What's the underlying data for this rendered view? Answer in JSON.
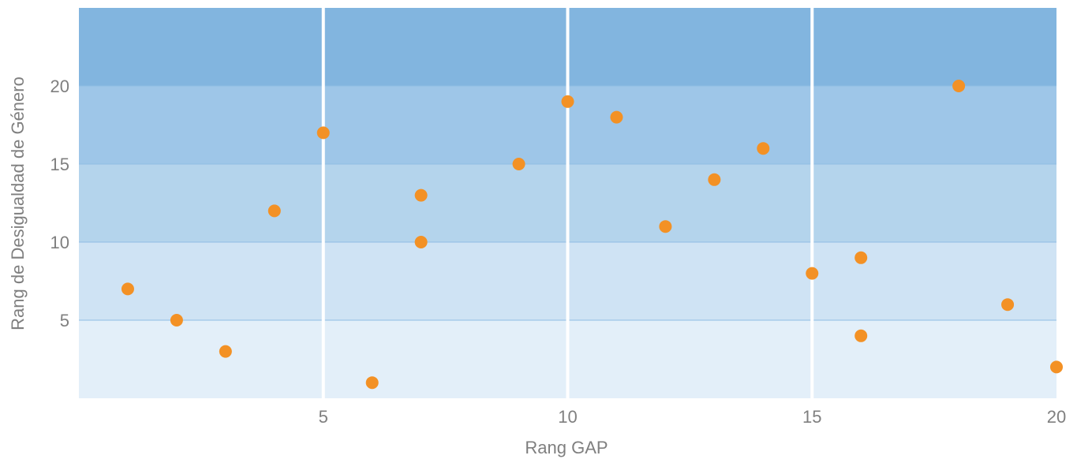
{
  "chart_data": {
    "type": "scatter",
    "title": "",
    "xlabel": "Rang GAP",
    "ylabel": "Rang de Desigualdad de Género",
    "xlim": [
      0,
      20
    ],
    "ylim": [
      0,
      25
    ],
    "x_ticks": [
      5,
      10,
      15,
      20
    ],
    "y_ticks": [
      5,
      10,
      15,
      20
    ],
    "grid": "vertical white lines at x ticks; horizontal color bands every 5 units",
    "band_colors": [
      "#e3eff9",
      "#cfe3f4",
      "#b4d4ec",
      "#9ec6e8",
      "#82b5df"
    ],
    "marker_color": "#f39125",
    "legend": "none",
    "series": [
      {
        "x": [
          1,
          2,
          3,
          4,
          5,
          6,
          7,
          7,
          9,
          10,
          11,
          12,
          13,
          14,
          15,
          16,
          16,
          18,
          19,
          20
        ],
        "y": [
          7,
          5,
          3,
          12,
          17,
          1,
          13,
          10,
          15,
          19,
          18,
          11,
          14,
          16,
          8,
          9,
          4,
          20,
          6,
          2
        ]
      }
    ]
  }
}
